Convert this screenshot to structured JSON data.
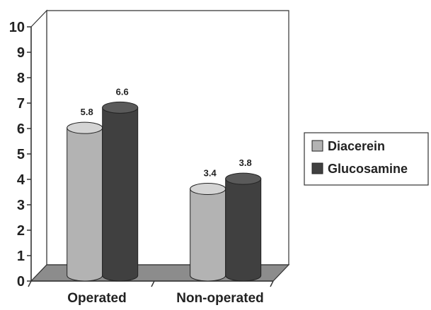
{
  "chart_data": {
    "type": "bar",
    "title": "",
    "xlabel": "",
    "ylabel": "",
    "ylim": [
      0,
      10
    ],
    "yticks": [
      0,
      1,
      2,
      3,
      4,
      5,
      6,
      7,
      8,
      9,
      10
    ],
    "categories": [
      "Operated",
      "Non-operated"
    ],
    "series": [
      {
        "name": "Diacerein",
        "values": [
          5.8,
          3.4
        ],
        "data_labels": [
          "5.8",
          "3.4"
        ],
        "color": "#b3b3b3"
      },
      {
        "name": "Glucosamine",
        "values": [
          6.6,
          3.8
        ],
        "data_labels": [
          "6.6",
          "3.8"
        ],
        "color": "#404040"
      }
    ],
    "legend_position": "right",
    "grid": false,
    "style": "3d-cylinder"
  }
}
